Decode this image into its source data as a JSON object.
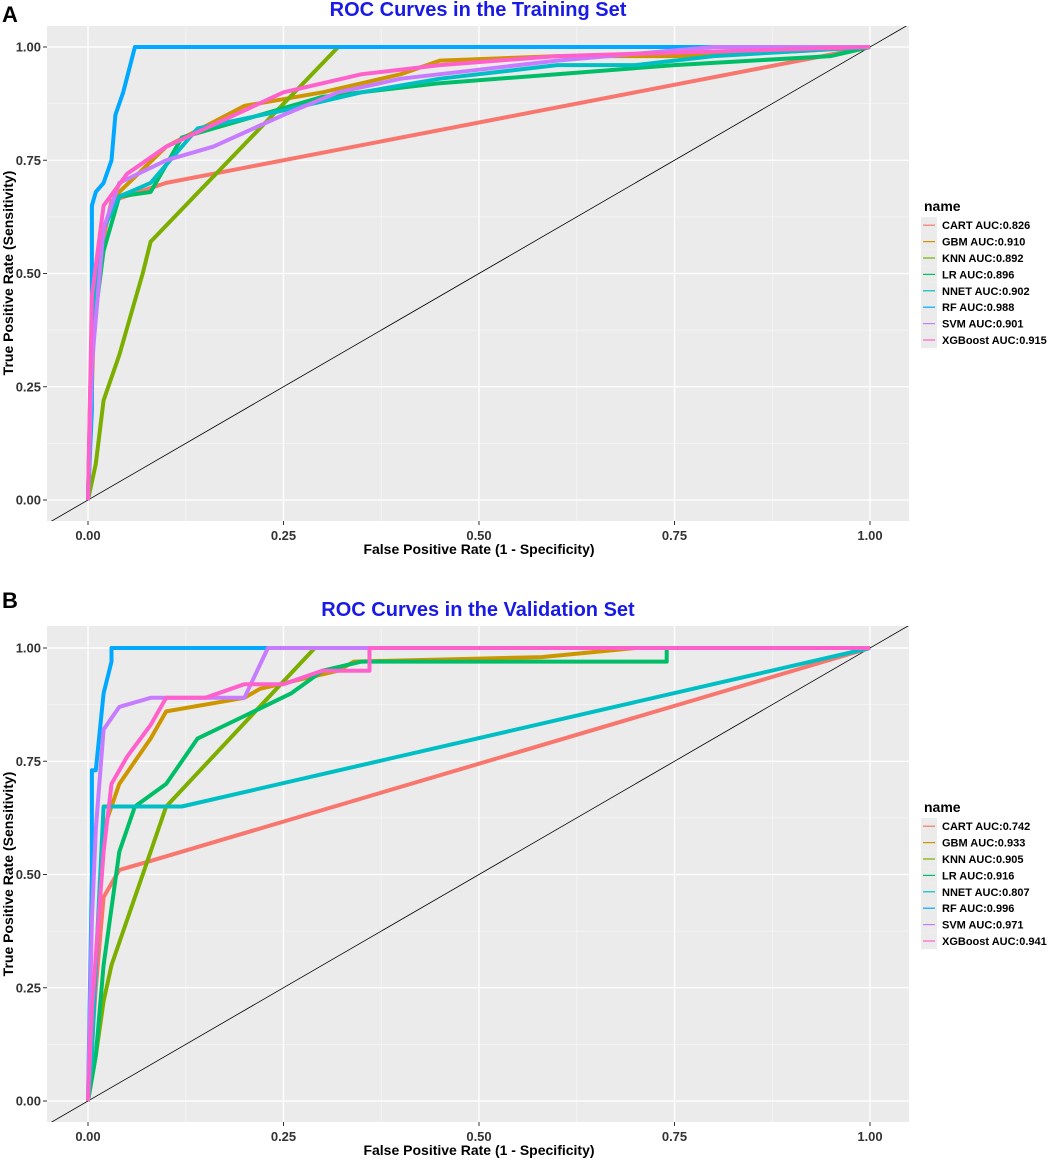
{
  "colors": {
    "panel_bg": "#EBEBEB",
    "grid_major": "#FFFFFF",
    "title": "#1A1AE6",
    "CART": "#F8766D",
    "GBM": "#CD9600",
    "KNN": "#7CAE00",
    "LR": "#00BE67",
    "NNET": "#00BFC4",
    "RF": "#00A9FF",
    "SVM": "#C77CFF",
    "XGBoost": "#FF61CC"
  },
  "chart_data": [
    {
      "type": "line",
      "panel_letter": "A",
      "title": "ROC Curves in the Training Set",
      "xlabel": "False Positive Rate (1 - Specificity)",
      "ylabel": "True Positive Rate (Sensitivity)",
      "xlim": [
        0,
        1
      ],
      "ylim": [
        0,
        1
      ],
      "xticks": [
        "0.00",
        "0.25",
        "0.50",
        "0.75",
        "1.00"
      ],
      "yticks": [
        "0.00",
        "0.25",
        "0.50",
        "0.75",
        "1.00"
      ],
      "legend_title": "name",
      "legend_position": "right",
      "reference_line": "diagonal",
      "series": [
        {
          "name": "CART",
          "label": "CART AUC:0.826",
          "x": [
            0,
            0.01,
            0.03,
            0.1,
            1
          ],
          "y": [
            0,
            0.5,
            0.66,
            0.7,
            1
          ]
        },
        {
          "name": "GBM",
          "label": "GBM AUC:0.910",
          "x": [
            0,
            0.005,
            0.02,
            0.04,
            0.1,
            0.2,
            0.3,
            0.4,
            0.45,
            0.6,
            0.75,
            0.9,
            1
          ],
          "y": [
            0,
            0.4,
            0.6,
            0.68,
            0.78,
            0.87,
            0.9,
            0.94,
            0.97,
            0.98,
            0.98,
            0.99,
            1
          ]
        },
        {
          "name": "KNN",
          "label": "KNN AUC:0.892",
          "x": [
            0,
            0.01,
            0.02,
            0.04,
            0.07,
            0.08,
            0.32,
            1
          ],
          "y": [
            0,
            0.08,
            0.22,
            0.32,
            0.5,
            0.57,
            1,
            1
          ]
        },
        {
          "name": "LR",
          "label": "LR AUC:0.896",
          "x": [
            0,
            0.005,
            0.02,
            0.04,
            0.08,
            0.12,
            0.2,
            0.3,
            0.45,
            0.6,
            0.75,
            0.95,
            1
          ],
          "y": [
            0,
            0.35,
            0.55,
            0.67,
            0.68,
            0.8,
            0.84,
            0.89,
            0.92,
            0.94,
            0.96,
            0.98,
            1
          ]
        },
        {
          "name": "NNET",
          "label": "NNET AUC:0.902",
          "x": [
            0,
            0.005,
            0.02,
            0.04,
            0.08,
            0.14,
            0.25,
            0.35,
            0.45,
            0.6,
            0.7,
            0.8,
            1
          ],
          "y": [
            0,
            0.4,
            0.6,
            0.67,
            0.7,
            0.82,
            0.86,
            0.9,
            0.93,
            0.96,
            0.96,
            0.98,
            1
          ]
        },
        {
          "name": "RF",
          "label": "RF AUC:0.988",
          "x": [
            0,
            0.005,
            0.005,
            0.01,
            0.02,
            0.03,
            0.035,
            0.045,
            0.06,
            0.07,
            0.5,
            0.8,
            1
          ],
          "y": [
            0,
            0.2,
            0.65,
            0.68,
            0.7,
            0.75,
            0.85,
            0.9,
            1,
            1,
            1,
            1,
            1
          ]
        },
        {
          "name": "SVM",
          "label": "SVM AUC:0.901",
          "x": [
            0,
            0.005,
            0.02,
            0.04,
            0.1,
            0.16,
            0.25,
            0.32,
            0.4,
            0.5,
            0.6,
            0.8,
            1
          ],
          "y": [
            0,
            0.3,
            0.6,
            0.7,
            0.75,
            0.78,
            0.85,
            0.9,
            0.93,
            0.95,
            0.97,
            1,
            1
          ]
        },
        {
          "name": "XGBoost",
          "label": "XGBoost AUC:0.915",
          "x": [
            0,
            0.005,
            0.02,
            0.05,
            0.1,
            0.15,
            0.2,
            0.25,
            0.35,
            0.45,
            0.6,
            0.8,
            1
          ],
          "y": [
            0,
            0.45,
            0.65,
            0.72,
            0.78,
            0.82,
            0.86,
            0.9,
            0.94,
            0.96,
            0.98,
            0.99,
            1
          ]
        }
      ]
    },
    {
      "type": "line",
      "panel_letter": "B",
      "title": "ROC Curves in the Validation Set",
      "xlabel": "False Positive Rate (1 - Specificity)",
      "ylabel": "True Positive Rate (Sensitivity)",
      "xlim": [
        0,
        1
      ],
      "ylim": [
        0,
        1
      ],
      "xticks": [
        "0.00",
        "0.25",
        "0.50",
        "0.75",
        "1.00"
      ],
      "yticks": [
        "0.00",
        "0.25",
        "0.50",
        "0.75",
        "1.00"
      ],
      "legend_title": "name",
      "legend_position": "right",
      "reference_line": "diagonal",
      "series": [
        {
          "name": "CART",
          "label": "CART AUC:0.742",
          "x": [
            0,
            0.01,
            0.02,
            0.04,
            0.08,
            1
          ],
          "y": [
            0,
            0.25,
            0.45,
            0.51,
            0.53,
            1
          ]
        },
        {
          "name": "GBM",
          "label": "GBM AUC:0.933",
          "x": [
            0,
            0.01,
            0.02,
            0.04,
            0.06,
            0.08,
            0.1,
            0.2,
            0.22,
            0.32,
            0.34,
            0.58,
            0.7,
            1
          ],
          "y": [
            0,
            0.3,
            0.6,
            0.7,
            0.75,
            0.8,
            0.86,
            0.89,
            0.91,
            0.95,
            0.97,
            0.98,
            1,
            1
          ]
        },
        {
          "name": "KNN",
          "label": "KNN AUC:0.905",
          "x": [
            0,
            0.01,
            0.02,
            0.03,
            0.1,
            0.29,
            1
          ],
          "y": [
            0,
            0.1,
            0.22,
            0.3,
            0.65,
            1,
            1
          ]
        },
        {
          "name": "LR",
          "label": "LR AUC:0.916",
          "x": [
            0,
            0.01,
            0.02,
            0.04,
            0.06,
            0.1,
            0.14,
            0.2,
            0.26,
            0.3,
            0.35,
            0.58,
            0.74,
            0.74,
            1
          ],
          "y": [
            0,
            0.1,
            0.3,
            0.55,
            0.65,
            0.7,
            0.8,
            0.85,
            0.9,
            0.95,
            0.97,
            0.97,
            0.97,
            1,
            1
          ]
        },
        {
          "name": "NNET",
          "label": "NNET AUC:0.807",
          "x": [
            0,
            0.005,
            0.01,
            0.02,
            0.12,
            1
          ],
          "y": [
            0,
            0.1,
            0.3,
            0.65,
            0.65,
            1
          ]
        },
        {
          "name": "RF",
          "label": "RF AUC:0.996",
          "x": [
            0,
            0.005,
            0.005,
            0.01,
            0.02,
            0.03,
            0.03,
            0.1,
            1
          ],
          "y": [
            0,
            0.5,
            0.73,
            0.73,
            0.9,
            0.97,
            1,
            1,
            1
          ]
        },
        {
          "name": "SVM",
          "label": "SVM AUC:0.971",
          "x": [
            0,
            0.005,
            0.01,
            0.02,
            0.04,
            0.08,
            0.2,
            0.23,
            0.3,
            1
          ],
          "y": [
            0,
            0.4,
            0.6,
            0.82,
            0.87,
            0.89,
            0.89,
            1,
            1,
            1
          ]
        },
        {
          "name": "XGBoost",
          "label": "XGBoost AUC:0.941",
          "x": [
            0,
            0.005,
            0.01,
            0.02,
            0.03,
            0.05,
            0.08,
            0.1,
            0.15,
            0.2,
            0.25,
            0.3,
            0.36,
            0.36,
            1
          ],
          "y": [
            0,
            0.2,
            0.32,
            0.55,
            0.7,
            0.76,
            0.83,
            0.89,
            0.89,
            0.92,
            0.92,
            0.95,
            0.95,
            1,
            1
          ]
        }
      ]
    }
  ]
}
